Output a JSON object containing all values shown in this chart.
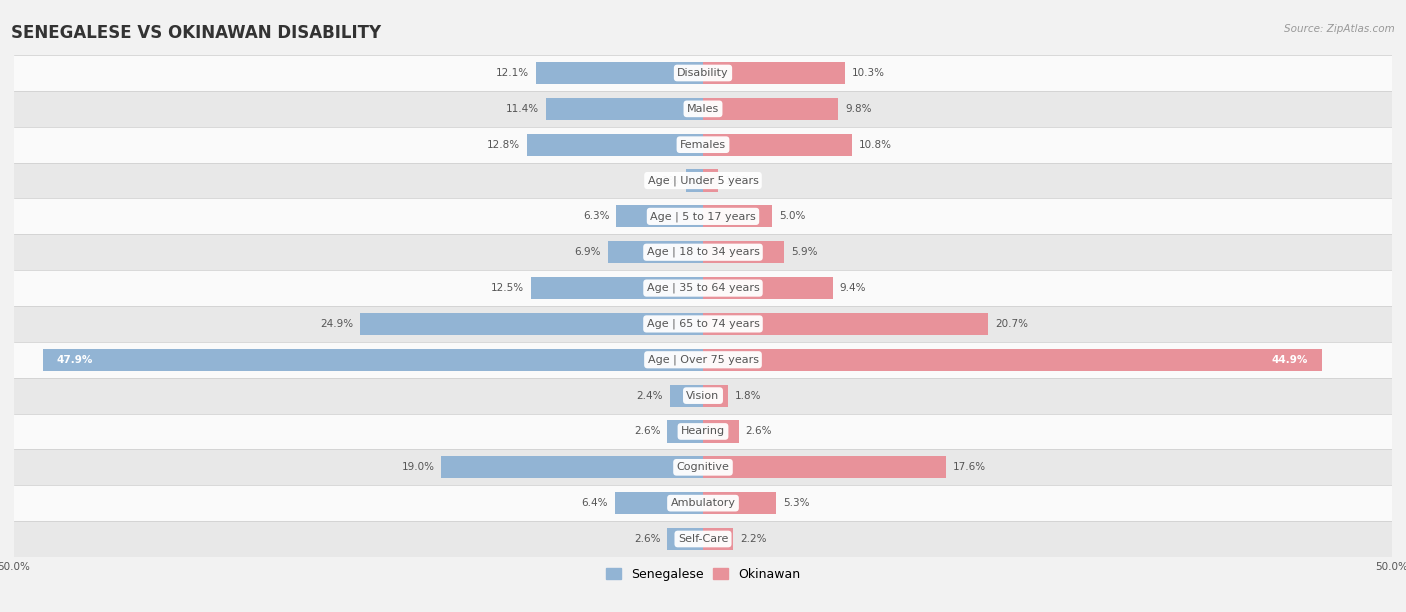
{
  "title": "SENEGALESE VS OKINAWAN DISABILITY",
  "source": "Source: ZipAtlas.com",
  "categories": [
    "Disability",
    "Males",
    "Females",
    "Age | Under 5 years",
    "Age | 5 to 17 years",
    "Age | 18 to 34 years",
    "Age | 35 to 64 years",
    "Age | 65 to 74 years",
    "Age | Over 75 years",
    "Vision",
    "Hearing",
    "Cognitive",
    "Ambulatory",
    "Self-Care"
  ],
  "senegalese": [
    12.1,
    11.4,
    12.8,
    1.2,
    6.3,
    6.9,
    12.5,
    24.9,
    47.9,
    2.4,
    2.6,
    19.0,
    6.4,
    2.6
  ],
  "okinawan": [
    10.3,
    9.8,
    10.8,
    1.1,
    5.0,
    5.9,
    9.4,
    20.7,
    44.9,
    1.8,
    2.6,
    17.6,
    5.3,
    2.2
  ],
  "senegalese_color": "#92b4d4",
  "okinawan_color": "#e8929a",
  "axis_max": 50.0,
  "bg_color": "#f2f2f2",
  "row_bg_light": "#fafafa",
  "row_bg_dark": "#e8e8e8",
  "bar_height": 0.62,
  "title_fontsize": 12,
  "label_fontsize": 8,
  "value_fontsize": 7.5,
  "legend_fontsize": 9,
  "source_fontsize": 7.5
}
